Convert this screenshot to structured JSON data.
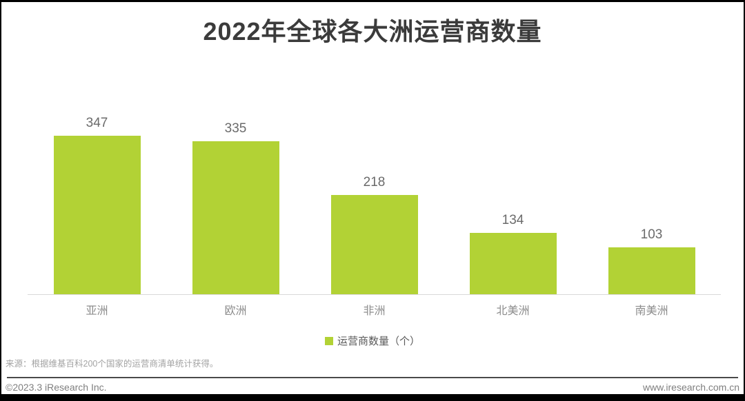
{
  "chart_data": {
    "type": "bar",
    "title": "2022年全球各大洲运营商数量",
    "categories": [
      "亚洲",
      "欧洲",
      "非洲",
      "北美洲",
      "南美洲"
    ],
    "values": [
      347,
      335,
      218,
      134,
      103
    ],
    "series_name": "运营商数量（个）",
    "value_labels_shown": true,
    "bar_color": "#b2d235",
    "ylim": [
      0,
      360
    ],
    "grid": false,
    "legend_position": "bottom-center",
    "xlabel": "",
    "ylabel": ""
  },
  "legend": {
    "label": "运营商数量（个）",
    "swatch_color": "#b2d235"
  },
  "source_note": "来源：根据维基百科200个国家的运营商清单统计获得。",
  "footer": {
    "left": "©2023.3 iResearch Inc.",
    "right": "www.iresearch.com.cn"
  },
  "colors": {
    "bar": "#b2d235",
    "title_text": "#3b3b3b",
    "value_label_text": "#6a6a6a",
    "category_text": "#8c8c8c",
    "baseline": "#d9d9d9",
    "footer_divider": "#4a4a4a",
    "footer_text": "#7f7f7f",
    "frame": "#000000"
  }
}
